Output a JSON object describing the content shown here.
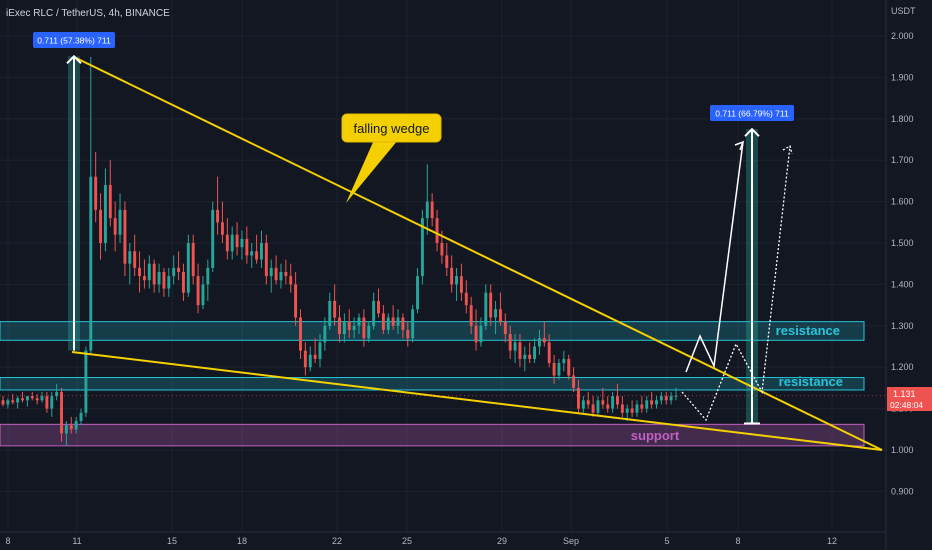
{
  "header": {
    "title": "iExec RLC / TetherUS, 4h, BINANCE"
  },
  "chart_data": {
    "type": "candlestick",
    "title": "iExec RLC / TetherUS, 4h, BINANCE",
    "y_unit": "USDT",
    "ylim": [
      0.85,
      2.08
    ],
    "y_ticks": [
      "2.000",
      "1.900",
      "1.800",
      "1.700",
      "1.600",
      "1.500",
      "1.400",
      "1.300",
      "1.200",
      "1.100",
      "1.000",
      "0.900"
    ],
    "x_ticks": [
      "8",
      "11",
      "15",
      "18",
      "22",
      "25",
      "29",
      "Sep",
      "5",
      "8",
      "12"
    ],
    "last_price": "1.131",
    "countdown": "02:48:04",
    "colors": {
      "up": "#26a69a",
      "down": "#ef5350",
      "wedge": "#f5d000",
      "zone": "#26c6da",
      "support": "#c060c0",
      "label_bg": "#2962ff"
    },
    "measures": [
      {
        "label": "0.711 (57.38%) 711",
        "from": 1.24,
        "to": 1.951
      },
      {
        "label": "0.711 (66.79%) 711",
        "from": 1.064,
        "to": 1.775
      }
    ],
    "zones": [
      {
        "name": "resistance",
        "label": "resistance",
        "low": 1.265,
        "high": 1.31
      },
      {
        "name": "resistance",
        "label": "resistance",
        "low": 1.145,
        "high": 1.175
      },
      {
        "name": "support",
        "label": "support",
        "low": 1.01,
        "high": 1.062
      }
    ],
    "annotation": "falling wedge",
    "candles": [
      [
        1.12,
        1.13,
        1.105,
        1.11
      ],
      [
        1.11,
        1.125,
        1.1,
        1.12
      ],
      [
        1.12,
        1.135,
        1.11,
        1.115
      ],
      [
        1.115,
        1.13,
        1.1,
        1.125
      ],
      [
        1.125,
        1.14,
        1.115,
        1.12
      ],
      [
        1.12,
        1.13,
        1.105,
        1.13
      ],
      [
        1.13,
        1.14,
        1.12,
        1.125
      ],
      [
        1.125,
        1.135,
        1.11,
        1.12
      ],
      [
        1.12,
        1.14,
        1.115,
        1.13
      ],
      [
        1.13,
        1.14,
        1.09,
        1.1
      ],
      [
        1.1,
        1.14,
        1.08,
        1.13
      ],
      [
        1.13,
        1.16,
        1.12,
        1.14
      ],
      [
        1.14,
        1.15,
        1.02,
        1.04
      ],
      [
        1.04,
        1.07,
        1.01,
        1.06
      ],
      [
        1.06,
        1.08,
        1.04,
        1.05
      ],
      [
        1.05,
        1.08,
        1.04,
        1.07
      ],
      [
        1.07,
        1.1,
        1.06,
        1.09
      ],
      [
        1.09,
        1.25,
        1.08,
        1.24
      ],
      [
        1.24,
        1.95,
        1.23,
        1.66
      ],
      [
        1.66,
        1.72,
        1.55,
        1.58
      ],
      [
        1.58,
        1.62,
        1.46,
        1.5
      ],
      [
        1.5,
        1.68,
        1.48,
        1.64
      ],
      [
        1.64,
        1.7,
        1.54,
        1.56
      ],
      [
        1.56,
        1.6,
        1.48,
        1.52
      ],
      [
        1.52,
        1.62,
        1.5,
        1.58
      ],
      [
        1.58,
        1.6,
        1.42,
        1.45
      ],
      [
        1.45,
        1.5,
        1.4,
        1.48
      ],
      [
        1.48,
        1.52,
        1.42,
        1.44
      ],
      [
        1.44,
        1.48,
        1.38,
        1.42
      ],
      [
        1.42,
        1.46,
        1.39,
        1.41
      ],
      [
        1.41,
        1.47,
        1.39,
        1.45
      ],
      [
        1.45,
        1.46,
        1.38,
        1.4
      ],
      [
        1.4,
        1.45,
        1.38,
        1.43
      ],
      [
        1.43,
        1.44,
        1.37,
        1.39
      ],
      [
        1.39,
        1.44,
        1.37,
        1.42
      ],
      [
        1.42,
        1.47,
        1.4,
        1.44
      ],
      [
        1.44,
        1.48,
        1.41,
        1.43
      ],
      [
        1.43,
        1.45,
        1.36,
        1.38
      ],
      [
        1.38,
        1.52,
        1.37,
        1.5
      ],
      [
        1.5,
        1.52,
        1.4,
        1.42
      ],
      [
        1.42,
        1.45,
        1.33,
        1.35
      ],
      [
        1.35,
        1.42,
        1.34,
        1.4
      ],
      [
        1.4,
        1.46,
        1.36,
        1.44
      ],
      [
        1.44,
        1.6,
        1.43,
        1.58
      ],
      [
        1.58,
        1.66,
        1.52,
        1.55
      ],
      [
        1.55,
        1.6,
        1.5,
        1.52
      ],
      [
        1.52,
        1.56,
        1.46,
        1.48
      ],
      [
        1.48,
        1.54,
        1.46,
        1.52
      ],
      [
        1.52,
        1.55,
        1.47,
        1.49
      ],
      [
        1.49,
        1.53,
        1.46,
        1.51
      ],
      [
        1.51,
        1.54,
        1.45,
        1.47
      ],
      [
        1.47,
        1.5,
        1.44,
        1.48
      ],
      [
        1.48,
        1.52,
        1.45,
        1.46
      ],
      [
        1.46,
        1.53,
        1.44,
        1.5
      ],
      [
        1.5,
        1.52,
        1.4,
        1.42
      ],
      [
        1.42,
        1.46,
        1.38,
        1.44
      ],
      [
        1.44,
        1.47,
        1.4,
        1.41
      ],
      [
        1.41,
        1.45,
        1.39,
        1.43
      ],
      [
        1.43,
        1.46,
        1.4,
        1.42
      ],
      [
        1.42,
        1.45,
        1.38,
        1.4
      ],
      [
        1.4,
        1.43,
        1.3,
        1.32
      ],
      [
        1.32,
        1.34,
        1.22,
        1.24
      ],
      [
        1.24,
        1.26,
        1.18,
        1.2
      ],
      [
        1.2,
        1.25,
        1.19,
        1.23
      ],
      [
        1.23,
        1.27,
        1.21,
        1.22
      ],
      [
        1.22,
        1.28,
        1.2,
        1.26
      ],
      [
        1.26,
        1.32,
        1.24,
        1.3
      ],
      [
        1.3,
        1.38,
        1.29,
        1.36
      ],
      [
        1.36,
        1.4,
        1.3,
        1.32
      ],
      [
        1.32,
        1.35,
        1.26,
        1.28
      ],
      [
        1.28,
        1.33,
        1.26,
        1.31
      ],
      [
        1.31,
        1.34,
        1.27,
        1.29
      ],
      [
        1.29,
        1.32,
        1.27,
        1.3
      ],
      [
        1.3,
        1.33,
        1.28,
        1.32
      ],
      [
        1.32,
        1.34,
        1.25,
        1.27
      ],
      [
        1.27,
        1.31,
        1.26,
        1.3
      ],
      [
        1.3,
        1.38,
        1.29,
        1.36
      ],
      [
        1.36,
        1.39,
        1.32,
        1.33
      ],
      [
        1.33,
        1.35,
        1.28,
        1.29
      ],
      [
        1.29,
        1.33,
        1.28,
        1.32
      ],
      [
        1.32,
        1.35,
        1.29,
        1.3
      ],
      [
        1.3,
        1.34,
        1.28,
        1.32
      ],
      [
        1.32,
        1.33,
        1.27,
        1.29
      ],
      [
        1.29,
        1.31,
        1.25,
        1.27
      ],
      [
        1.27,
        1.35,
        1.26,
        1.34
      ],
      [
        1.34,
        1.44,
        1.33,
        1.42
      ],
      [
        1.42,
        1.58,
        1.4,
        1.56
      ],
      [
        1.56,
        1.69,
        1.52,
        1.6
      ],
      [
        1.6,
        1.62,
        1.54,
        1.56
      ],
      [
        1.56,
        1.58,
        1.48,
        1.5
      ],
      [
        1.5,
        1.53,
        1.45,
        1.47
      ],
      [
        1.47,
        1.5,
        1.42,
        1.44
      ],
      [
        1.44,
        1.47,
        1.38,
        1.4
      ],
      [
        1.4,
        1.44,
        1.36,
        1.42
      ],
      [
        1.42,
        1.45,
        1.36,
        1.38
      ],
      [
        1.38,
        1.41,
        1.33,
        1.35
      ],
      [
        1.35,
        1.37,
        1.28,
        1.3
      ],
      [
        1.3,
        1.34,
        1.24,
        1.26
      ],
      [
        1.26,
        1.32,
        1.25,
        1.3
      ],
      [
        1.3,
        1.4,
        1.29,
        1.38
      ],
      [
        1.38,
        1.4,
        1.3,
        1.32
      ],
      [
        1.32,
        1.36,
        1.28,
        1.34
      ],
      [
        1.34,
        1.38,
        1.3,
        1.31
      ],
      [
        1.31,
        1.33,
        1.26,
        1.28
      ],
      [
        1.28,
        1.3,
        1.22,
        1.24
      ],
      [
        1.24,
        1.28,
        1.21,
        1.26
      ],
      [
        1.26,
        1.28,
        1.2,
        1.22
      ],
      [
        1.22,
        1.25,
        1.19,
        1.23
      ],
      [
        1.23,
        1.26,
        1.21,
        1.22
      ],
      [
        1.22,
        1.27,
        1.21,
        1.25
      ],
      [
        1.25,
        1.29,
        1.23,
        1.27
      ],
      [
        1.27,
        1.31,
        1.25,
        1.26
      ],
      [
        1.26,
        1.28,
        1.2,
        1.21
      ],
      [
        1.21,
        1.23,
        1.16,
        1.18
      ],
      [
        1.18,
        1.22,
        1.17,
        1.21
      ],
      [
        1.21,
        1.24,
        1.19,
        1.22
      ],
      [
        1.22,
        1.23,
        1.17,
        1.18
      ],
      [
        1.18,
        1.2,
        1.14,
        1.15
      ],
      [
        1.15,
        1.17,
        1.09,
        1.1
      ],
      [
        1.1,
        1.13,
        1.09,
        1.12
      ],
      [
        1.12,
        1.14,
        1.1,
        1.11
      ],
      [
        1.11,
        1.13,
        1.08,
        1.09
      ],
      [
        1.09,
        1.13,
        1.08,
        1.12
      ],
      [
        1.12,
        1.15,
        1.1,
        1.11
      ],
      [
        1.11,
        1.13,
        1.09,
        1.1
      ],
      [
        1.1,
        1.14,
        1.09,
        1.13
      ],
      [
        1.13,
        1.16,
        1.1,
        1.11
      ],
      [
        1.11,
        1.13,
        1.08,
        1.09
      ],
      [
        1.09,
        1.11,
        1.07,
        1.1
      ],
      [
        1.1,
        1.12,
        1.08,
        1.09
      ],
      [
        1.09,
        1.12,
        1.08,
        1.11
      ],
      [
        1.11,
        1.13,
        1.09,
        1.1
      ],
      [
        1.1,
        1.13,
        1.09,
        1.12
      ],
      [
        1.12,
        1.14,
        1.1,
        1.11
      ],
      [
        1.11,
        1.13,
        1.1,
        1.12
      ],
      [
        1.12,
        1.14,
        1.11,
        1.13
      ],
      [
        1.13,
        1.14,
        1.11,
        1.12
      ],
      [
        1.12,
        1.14,
        1.11,
        1.13
      ],
      [
        1.13,
        1.15,
        1.12,
        1.131
      ]
    ]
  }
}
